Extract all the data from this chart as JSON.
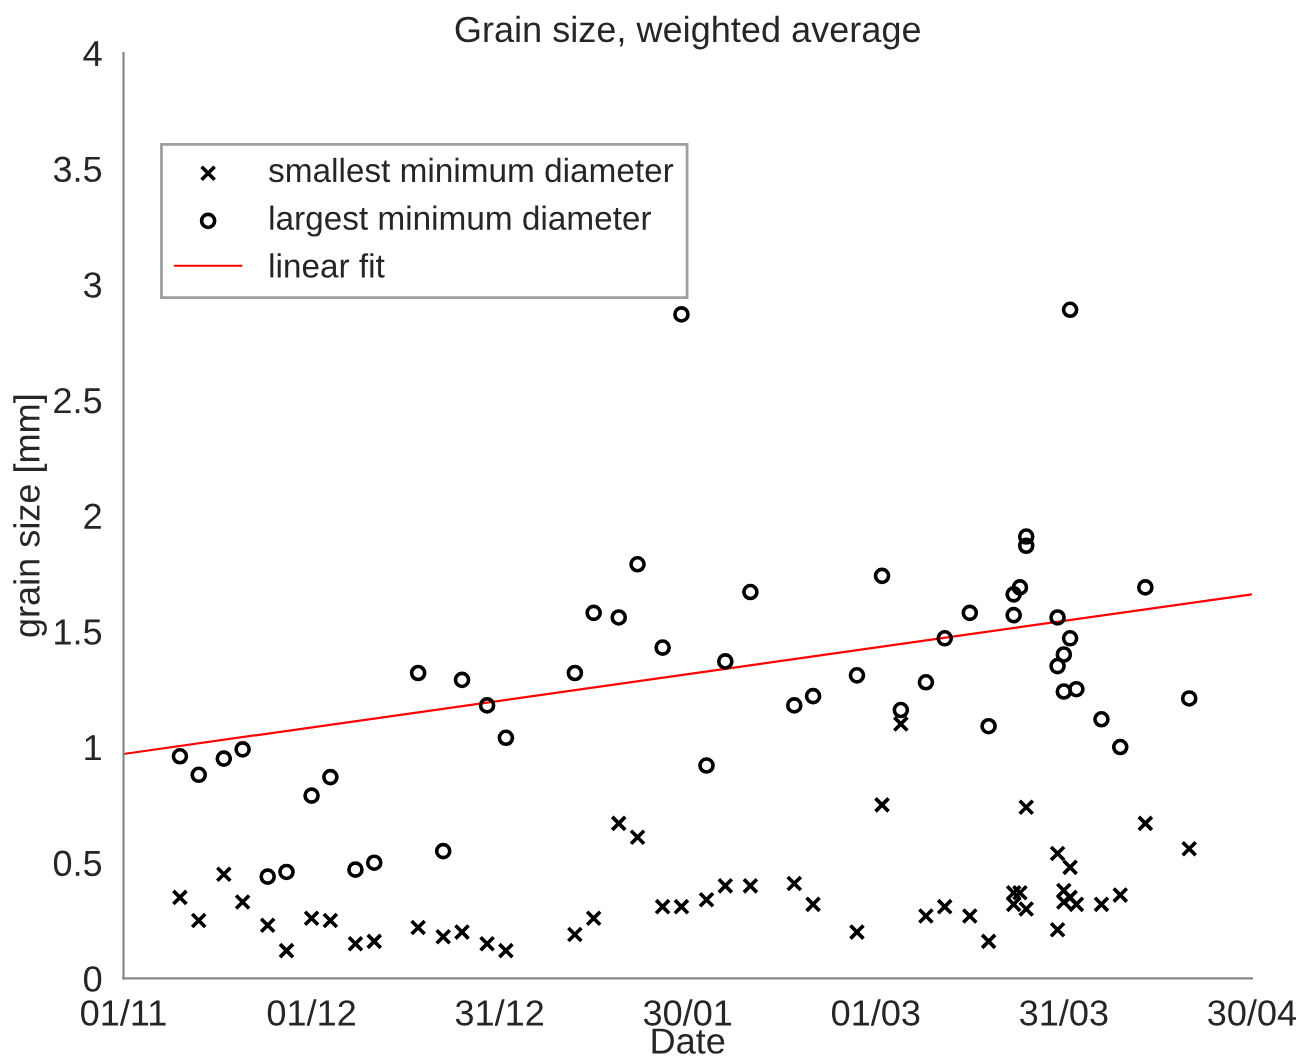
{
  "chart_data": {
    "type": "scatter",
    "title": "Grain size, weighted average",
    "xlabel": "Date",
    "ylabel": "grain size [mm]",
    "xlim": [
      "2001-11-01",
      "2002-04-30"
    ],
    "ylim": [
      0,
      4
    ],
    "xticks": [
      {
        "value": "2001-11-01",
        "label": "01/11"
      },
      {
        "value": "2001-12-01",
        "label": "01/12"
      },
      {
        "value": "2001-12-31",
        "label": "31/12"
      },
      {
        "value": "2002-01-30",
        "label": "30/01"
      },
      {
        "value": "2002-03-01",
        "label": "01/03"
      },
      {
        "value": "2002-03-31",
        "label": "31/03"
      },
      {
        "value": "2002-04-30",
        "label": "30/04"
      }
    ],
    "yticks": [
      0,
      0.5,
      1,
      1.5,
      2,
      2.5,
      3,
      3.5,
      4
    ],
    "grid": false,
    "legend": "top left",
    "series": [
      {
        "name": "smallest minimum diameter",
        "marker": "cross",
        "color": "#000000",
        "x": [
          "2001-11-10",
          "2001-11-13",
          "2001-11-17",
          "2001-11-20",
          "2001-11-24",
          "2001-11-27",
          "2001-12-01",
          "2001-12-04",
          "2001-12-08",
          "2001-12-11",
          "2001-12-18",
          "2001-12-22",
          "2001-12-25",
          "2001-12-29",
          "2002-01-01",
          "2002-01-12",
          "2002-01-15",
          "2002-01-19",
          "2002-01-22",
          "2002-01-26",
          "2002-01-29",
          "2002-02-02",
          "2002-02-05",
          "2002-02-09",
          "2002-02-16",
          "2002-02-19",
          "2002-02-26",
          "2002-03-02",
          "2002-03-05",
          "2002-03-09",
          "2002-03-12",
          "2002-03-16",
          "2002-03-19",
          "2002-03-23",
          "2002-03-23",
          "2002-03-24",
          "2002-03-25",
          "2002-03-25",
          "2002-03-30",
          "2002-03-30",
          "2002-03-31",
          "2002-03-31",
          "2002-04-01",
          "2002-04-01",
          "2002-04-02",
          "2002-04-06",
          "2002-04-09",
          "2002-04-13",
          "2002-04-20"
        ],
        "values": [
          0.35,
          0.25,
          0.45,
          0.33,
          0.23,
          0.12,
          0.26,
          0.25,
          0.15,
          0.16,
          0.22,
          0.18,
          0.2,
          0.15,
          0.12,
          0.19,
          0.26,
          0.67,
          0.61,
          0.31,
          0.31,
          0.34,
          0.4,
          0.4,
          0.41,
          0.32,
          0.2,
          0.75,
          1.1,
          0.27,
          0.31,
          0.27,
          0.16,
          0.37,
          0.32,
          0.37,
          0.3,
          0.74,
          0.54,
          0.21,
          0.38,
          0.33,
          0.48,
          0.35,
          0.32,
          0.32,
          0.36,
          0.67,
          0.56
        ]
      },
      {
        "name": "largest minimum diameter",
        "marker": "circle",
        "color": "#000000",
        "x": [
          "2001-11-10",
          "2001-11-13",
          "2001-11-17",
          "2001-11-20",
          "2001-11-24",
          "2001-11-27",
          "2001-12-01",
          "2001-12-04",
          "2001-12-08",
          "2001-12-11",
          "2001-12-18",
          "2001-12-22",
          "2001-12-25",
          "2001-12-29",
          "2002-01-01",
          "2002-01-12",
          "2002-01-15",
          "2002-01-19",
          "2002-01-22",
          "2002-01-26",
          "2002-01-29",
          "2002-02-02",
          "2002-02-05",
          "2002-02-09",
          "2002-02-16",
          "2002-02-19",
          "2002-02-26",
          "2002-03-02",
          "2002-03-05",
          "2002-03-09",
          "2002-03-12",
          "2002-03-16",
          "2002-03-19",
          "2002-03-23",
          "2002-03-23",
          "2002-03-24",
          "2002-03-25",
          "2002-03-25",
          "2002-03-30",
          "2002-04-01",
          "2002-03-31",
          "2002-03-30",
          "2002-03-31",
          "2002-04-02",
          "2002-04-01",
          "2002-04-06",
          "2002-04-09",
          "2002-04-13",
          "2002-04-20"
        ],
        "values": [
          0.96,
          0.88,
          0.95,
          0.99,
          0.44,
          0.46,
          0.79,
          0.87,
          0.47,
          0.5,
          1.32,
          0.55,
          1.29,
          1.18,
          1.04,
          1.32,
          1.58,
          1.56,
          1.79,
          1.43,
          2.87,
          0.92,
          1.37,
          1.67,
          1.18,
          1.22,
          1.31,
          1.74,
          1.16,
          1.28,
          1.47,
          1.58,
          1.09,
          1.57,
          1.66,
          1.69,
          1.91,
          1.87,
          1.56,
          1.47,
          1.4,
          1.35,
          1.24,
          1.25,
          2.89,
          1.12,
          1.0,
          1.69,
          1.21
        ]
      },
      {
        "name": "linear fit",
        "type": "line",
        "marker": "none",
        "line_style": "solid",
        "color": "#ff0000",
        "x": [
          "2001-11-01",
          "2002-04-30"
        ],
        "values": [
          0.97,
          1.66
        ]
      }
    ]
  }
}
